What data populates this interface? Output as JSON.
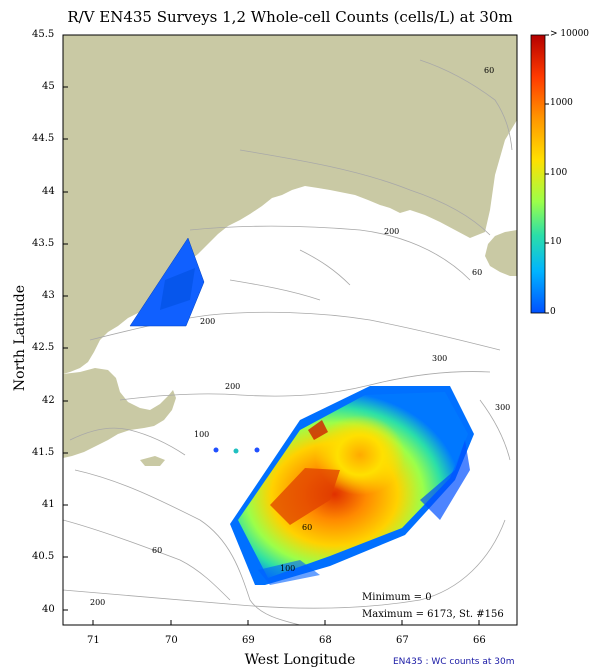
{
  "title": "R/V EN435 Surveys 1,2 Whole-cell Counts (cells/L) at 30m",
  "x_axis_label": "West Longitude",
  "y_axis_label": "North Latitude",
  "x_ticks": [
    "71",
    "70",
    "69",
    "68",
    "67",
    "66"
  ],
  "y_ticks": [
    "45.5",
    "45",
    "44.5",
    "44",
    "43.5",
    "43",
    "42.5",
    "42",
    "41.5",
    "41",
    "40.5",
    "40"
  ],
  "colorbar": {
    "labels": [
      "> 10000",
      "1000",
      "100",
      "10",
      "0"
    ],
    "colors": [
      "#b40000",
      "#ff3a00",
      "#ff9600",
      "#ffe000",
      "#9bff4a",
      "#2bdfa8",
      "#00b4ff",
      "#0050ff"
    ]
  },
  "depth_contours": [
    "60",
    "200",
    "200",
    "200",
    "300",
    "300",
    "60",
    "100",
    "60",
    "60",
    "200",
    "100"
  ],
  "stats": {
    "minimum": "Minimum = 0",
    "maximum": "Maximum = 6173, St. #156"
  },
  "footer": "EN435 : WC counts at 30m",
  "colors": {
    "land": "#c9c9a4",
    "contour": "#a8a8a8",
    "frame": "#000000"
  }
}
